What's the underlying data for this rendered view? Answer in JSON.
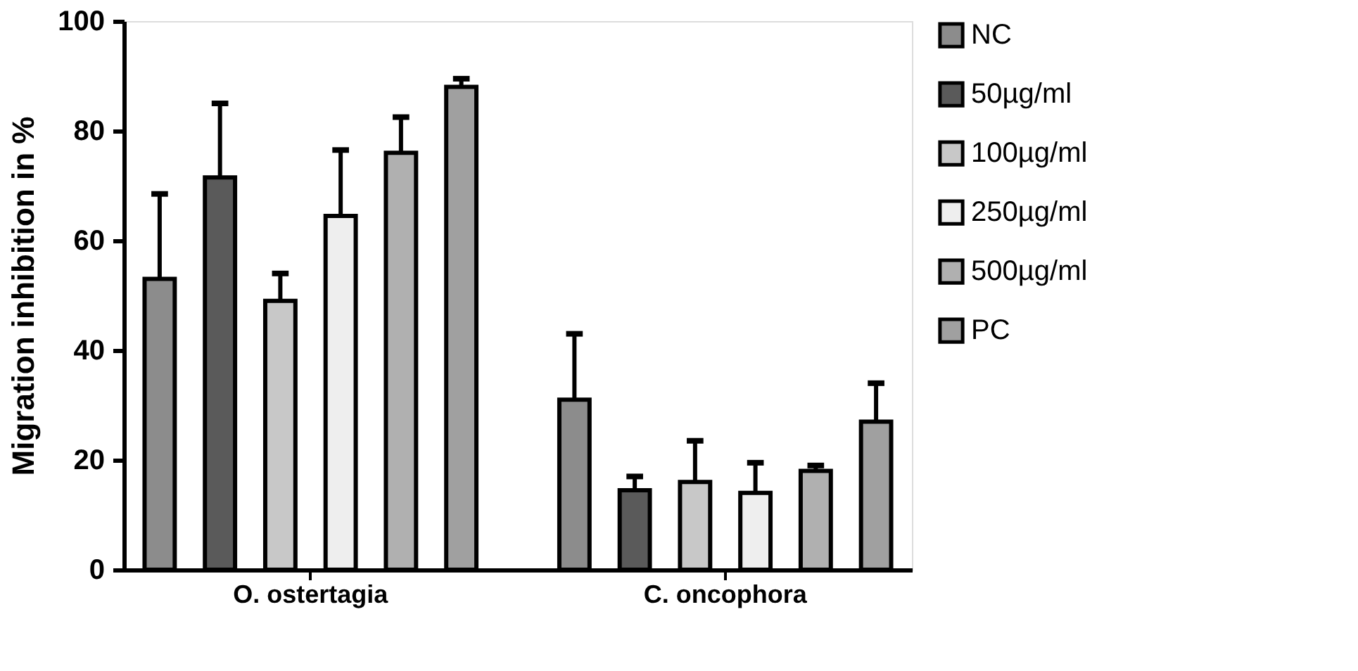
{
  "chart_data": {
    "type": "bar",
    "ylabel": "Migration inhibition in %",
    "categories": [
      "O. ostertagia",
      "C. oncophora"
    ],
    "series": [
      {
        "name": "NC",
        "color": "#8c8c8c",
        "values": [
          53,
          31
        ],
        "errors": [
          [
            53,
            68.5
          ],
          [
            31,
            43
          ]
        ]
      },
      {
        "name": "50µg/ml",
        "color": "#5a5a5a",
        "values": [
          71.5,
          14.5
        ],
        "errors": [
          [
            71.5,
            85
          ],
          [
            14.5,
            17
          ]
        ]
      },
      {
        "name": "100µg/ml",
        "color": "#c8c8c8",
        "values": [
          49,
          16
        ],
        "errors": [
          [
            49,
            54
          ],
          [
            16,
            23.5
          ]
        ]
      },
      {
        "name": "250µg/ml",
        "color": "#eeeeee",
        "values": [
          64.5,
          14
        ],
        "errors": [
          [
            64.5,
            76.5
          ],
          [
            14,
            19.5
          ]
        ]
      },
      {
        "name": "500µg/ml",
        "color": "#b0b0b0",
        "values": [
          76,
          18
        ],
        "errors": [
          [
            76,
            82.5
          ],
          [
            18,
            19
          ]
        ]
      },
      {
        "name": "PC",
        "color": "#a0a0a0",
        "values": [
          88,
          27
        ],
        "errors": [
          [
            88,
            89.5
          ],
          [
            27,
            34
          ]
        ]
      }
    ],
    "ylim": [
      0,
      100
    ],
    "yticks": [
      0,
      20,
      40,
      60,
      80,
      100
    ],
    "grid": false,
    "legend": "right"
  }
}
